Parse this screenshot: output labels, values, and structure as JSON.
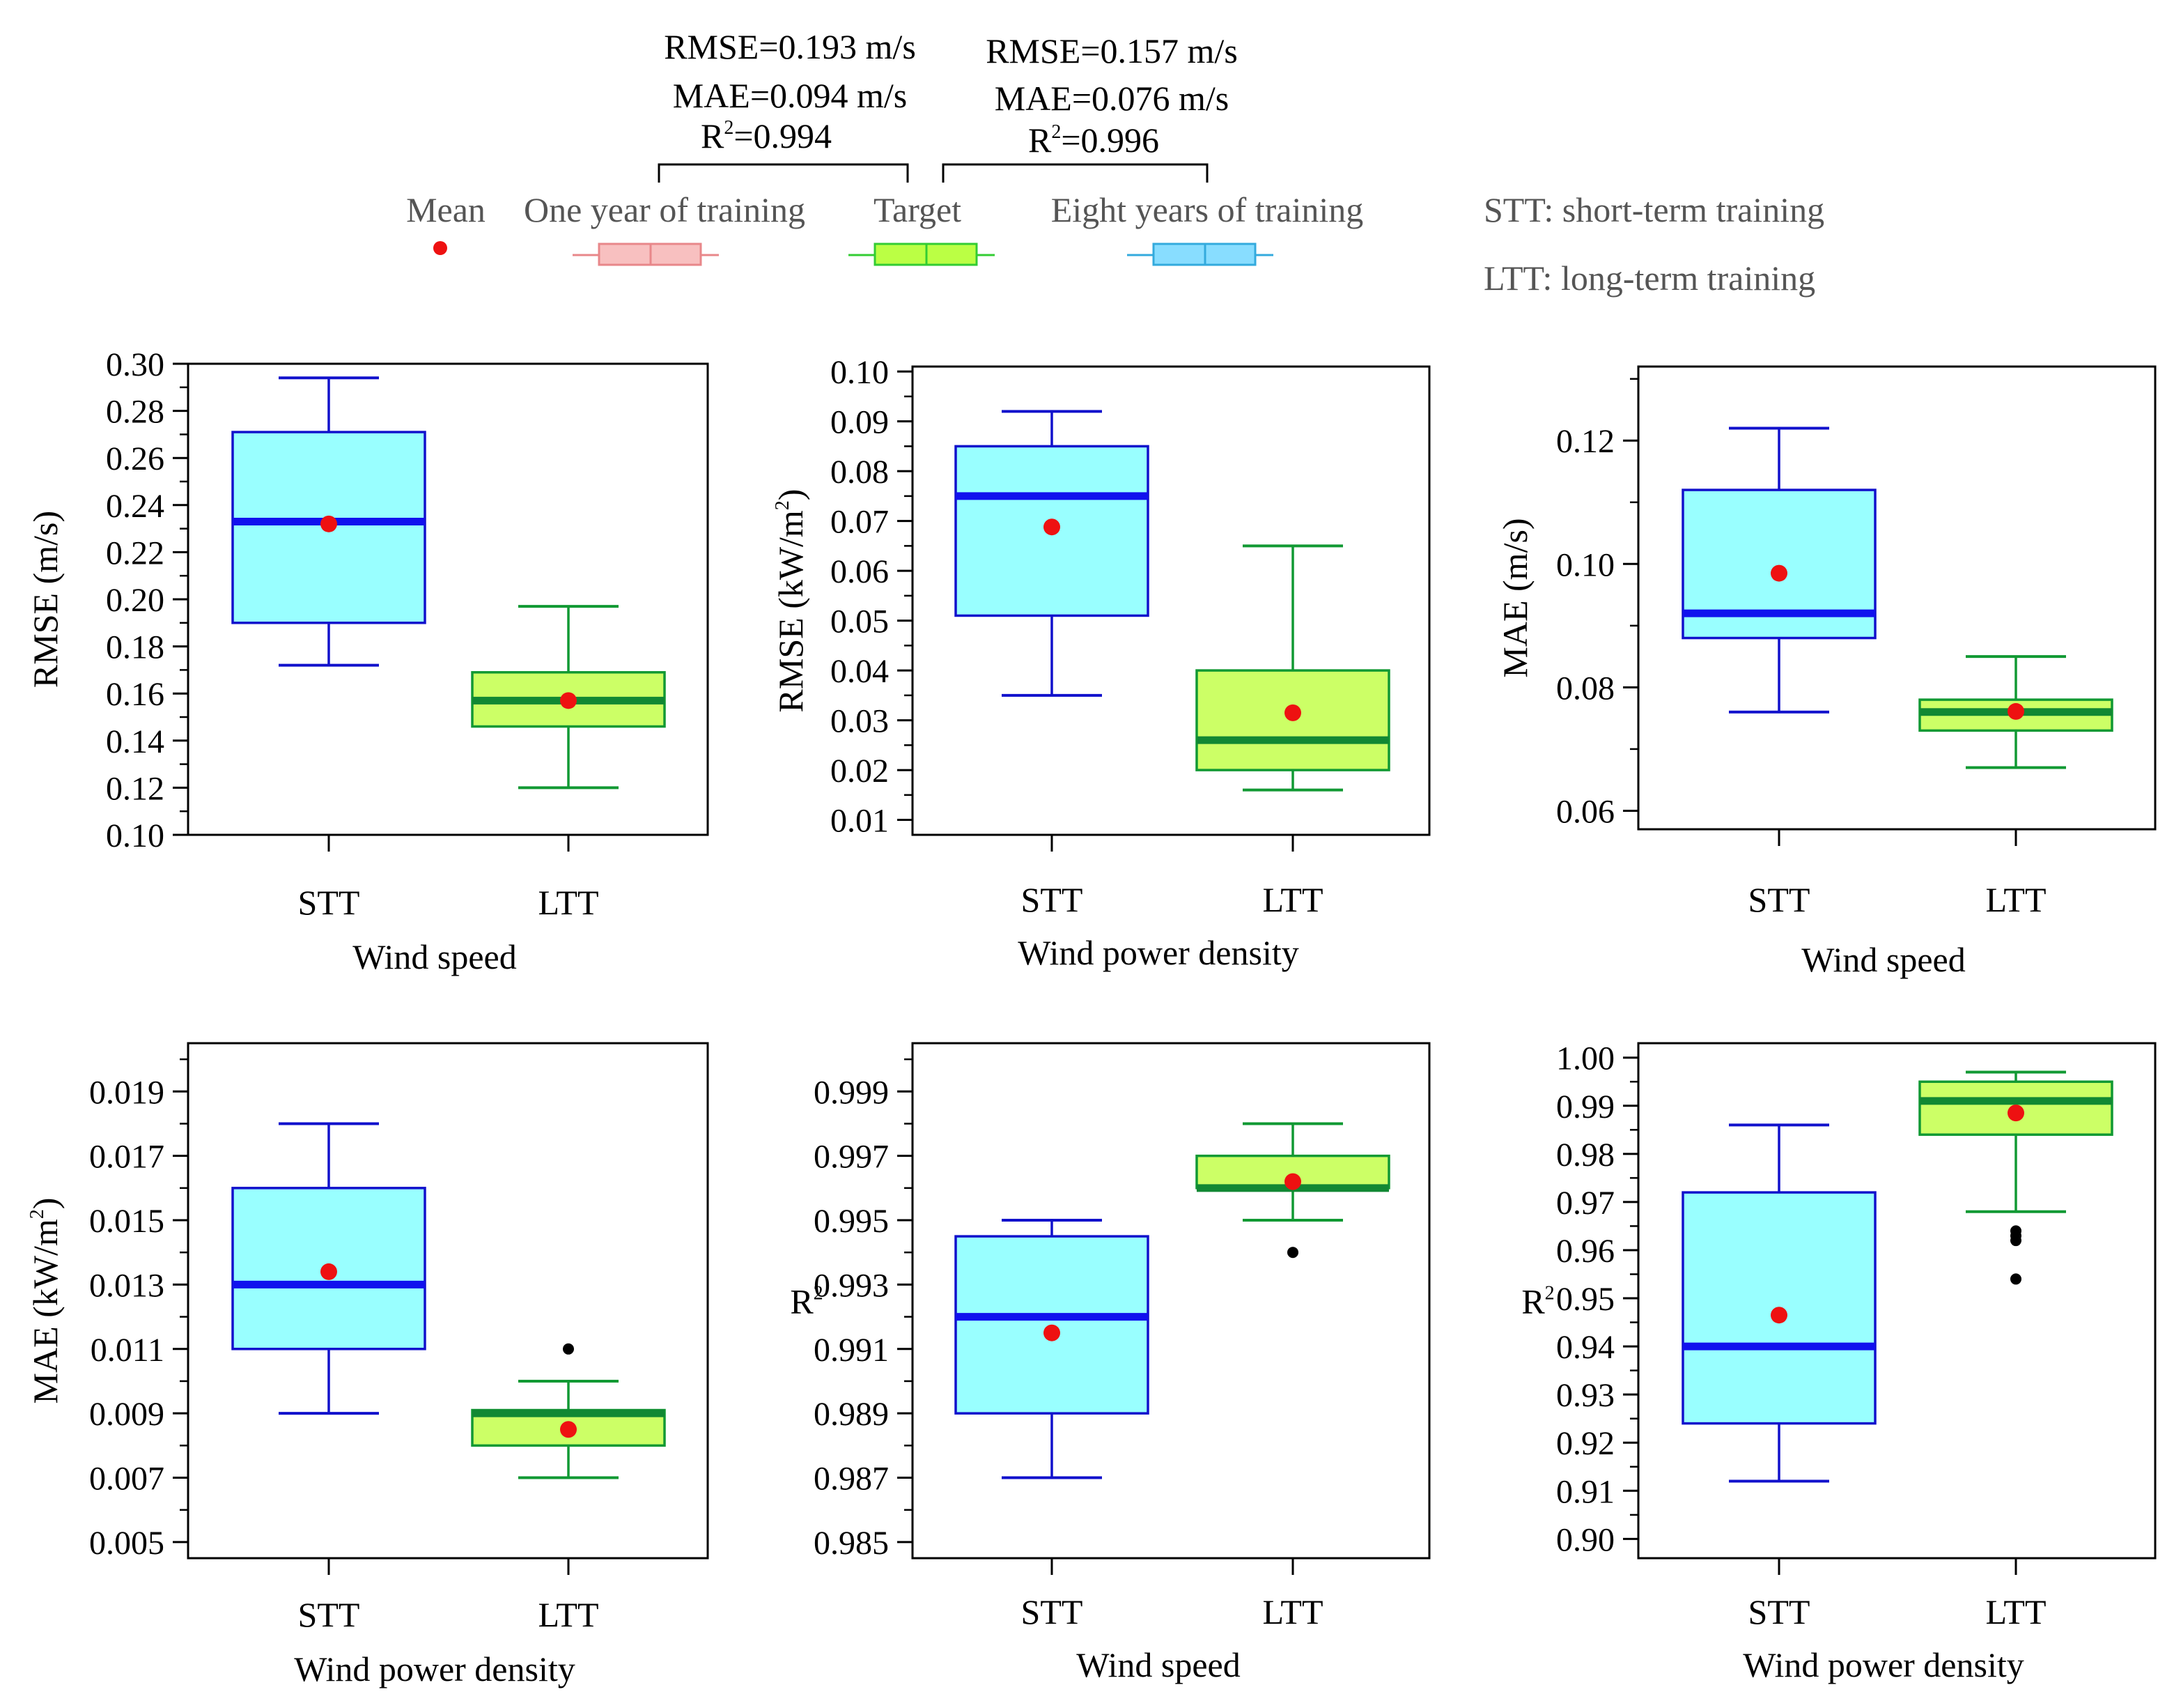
{
  "legend": {
    "mean_label": "Mean",
    "one_year_label": "One year of training",
    "target_label": "Target",
    "eight_years_label": "Eight years of training",
    "stt_note": "STT: short-term training",
    "ltt_note": "LTT: long-term training",
    "one_year_color": "#e8878a",
    "one_year_fill": "#f8c0c0",
    "target_color": "#33cc33",
    "target_fill": "#bbff44",
    "eight_years_color": "#33aadd",
    "eight_years_fill": "#88ddff",
    "mean_color": "#ee1111"
  },
  "comparisons": {
    "stt": {
      "rmse": "RMSE=0.193 m/s",
      "mae": "MAE=0.094 m/s",
      "r2_prefix": "R",
      "r2_sup": "2",
      "r2_value": "=0.994"
    },
    "ltt": {
      "rmse": "RMSE=0.157 m/s",
      "mae": "MAE=0.076 m/s",
      "r2_prefix": "R",
      "r2_sup": "2",
      "r2_value": "=0.996"
    }
  },
  "colors": {
    "stt_edge": "#1111cc",
    "stt_fill": "#99ffff",
    "stt_median": "#1111ee",
    "ltt_edge": "#119933",
    "ltt_fill": "#ccff66",
    "ltt_median": "#118833",
    "mean": "#ee1111",
    "outlier": "#000000"
  },
  "chart_data": [
    {
      "id": "p1",
      "type": "boxplot",
      "ylabel": {
        "main": "RMSE (m/s)"
      },
      "xlabel": "Wind speed",
      "categories": [
        "STT",
        "LTT"
      ],
      "ylim": [
        0.1,
        0.3
      ],
      "yticks": [
        0.1,
        0.12,
        0.14,
        0.16,
        0.18,
        0.2,
        0.22,
        0.24,
        0.26,
        0.28,
        0.3
      ],
      "ytick_labels": [
        "0.10",
        "0.12",
        "0.14",
        "0.16",
        "0.18",
        "0.20",
        "0.22",
        "0.24",
        "0.26",
        "0.28",
        "0.30"
      ],
      "minor_step": 0.01,
      "boxes": [
        {
          "category": "STT",
          "whisker_low": 0.172,
          "q1": 0.19,
          "median": 0.233,
          "q3": 0.271,
          "whisker_high": 0.294,
          "mean": 0.232,
          "outliers": []
        },
        {
          "category": "LTT",
          "whisker_low": 0.12,
          "q1": 0.146,
          "median": 0.157,
          "q3": 0.169,
          "whisker_high": 0.197,
          "mean": 0.157,
          "outliers": []
        }
      ]
    },
    {
      "id": "p2",
      "type": "boxplot",
      "ylabel": {
        "main": "RMSE (kW/m",
        "sup": "2",
        "end": ")"
      },
      "xlabel": "Wind power density",
      "categories": [
        "STT",
        "LTT"
      ],
      "ylim": [
        0.007,
        0.101
      ],
      "yticks": [
        0.01,
        0.02,
        0.03,
        0.04,
        0.05,
        0.06,
        0.07,
        0.08,
        0.09,
        0.1
      ],
      "ytick_labels": [
        "0.01",
        "0.02",
        "0.03",
        "0.04",
        "0.05",
        "0.06",
        "0.07",
        "0.08",
        "0.09",
        "0.10"
      ],
      "minor_step": 0.005,
      "boxes": [
        {
          "category": "STT",
          "whisker_low": 0.035,
          "q1": 0.051,
          "median": 0.075,
          "q3": 0.085,
          "whisker_high": 0.092,
          "mean": 0.0688,
          "outliers": []
        },
        {
          "category": "LTT",
          "whisker_low": 0.016,
          "q1": 0.02,
          "median": 0.026,
          "q3": 0.04,
          "whisker_high": 0.065,
          "mean": 0.0315,
          "outliers": []
        }
      ]
    },
    {
      "id": "p3",
      "type": "boxplot",
      "ylabel": {
        "main": "MAE (m/s)"
      },
      "xlabel": "Wind speed",
      "categories": [
        "STT",
        "LTT"
      ],
      "ylim": [
        0.057,
        0.132
      ],
      "yticks": [
        0.06,
        0.08,
        0.1,
        0.12
      ],
      "ytick_labels": [
        "0.06",
        "0.08",
        "0.10",
        "0.12"
      ],
      "minor_step": 0.01,
      "boxes": [
        {
          "category": "STT",
          "whisker_low": 0.076,
          "q1": 0.088,
          "median": 0.092,
          "q3": 0.112,
          "whisker_high": 0.122,
          "mean": 0.0985,
          "outliers": []
        },
        {
          "category": "LTT",
          "whisker_low": 0.067,
          "q1": 0.073,
          "median": 0.076,
          "q3": 0.078,
          "whisker_high": 0.085,
          "mean": 0.0761,
          "outliers": []
        }
      ]
    },
    {
      "id": "p4",
      "type": "boxplot",
      "ylabel": {
        "main": "MAE (kW/m",
        "sup": "2",
        "end": ")"
      },
      "xlabel": "Wind power density",
      "categories": [
        "STT",
        "LTT"
      ],
      "ylim": [
        0.0045,
        0.0205
      ],
      "yticks": [
        0.005,
        0.007,
        0.009,
        0.011,
        0.013,
        0.015,
        0.017,
        0.019
      ],
      "ytick_labels": [
        "0.005",
        "0.007",
        "0.009",
        "0.011",
        "0.013",
        "0.015",
        "0.017",
        "0.019"
      ],
      "minor_step": 0.001,
      "boxes": [
        {
          "category": "STT",
          "whisker_low": 0.009,
          "q1": 0.011,
          "median": 0.013,
          "q3": 0.016,
          "whisker_high": 0.018,
          "mean": 0.0134,
          "outliers": []
        },
        {
          "category": "LTT",
          "whisker_low": 0.007,
          "q1": 0.008,
          "median": 0.009,
          "q3": 0.0091,
          "whisker_high": 0.01,
          "mean": 0.0085,
          "outliers": [
            0.011
          ]
        }
      ]
    },
    {
      "id": "p5",
      "type": "boxplot",
      "ylabel": {
        "main": "R",
        "sup": "2",
        "end": ""
      },
      "xlabel": "Wind speed",
      "categories": [
        "STT",
        "LTT"
      ],
      "ylim": [
        0.9845,
        1.0005
      ],
      "yticks": [
        0.985,
        0.987,
        0.989,
        0.991,
        0.993,
        0.995,
        0.997,
        0.999
      ],
      "ytick_labels": [
        "0.985",
        "0.987",
        "0.989",
        "0.991",
        "0.993",
        "0.995",
        "0.997",
        "0.999"
      ],
      "minor_step": 0.001,
      "boxes": [
        {
          "category": "STT",
          "whisker_low": 0.987,
          "q1": 0.989,
          "median": 0.992,
          "q3": 0.9945,
          "whisker_high": 0.995,
          "mean": 0.9915,
          "outliers": []
        },
        {
          "category": "LTT",
          "whisker_low": 0.995,
          "q1": 0.996,
          "median": 0.996,
          "q3": 0.997,
          "whisker_high": 0.998,
          "mean": 0.9962,
          "outliers": [
            0.994
          ]
        }
      ]
    },
    {
      "id": "p6",
      "type": "boxplot",
      "ylabel": {
        "main": "R",
        "sup": "2",
        "end": ""
      },
      "xlabel": "Wind power density",
      "categories": [
        "STT",
        "LTT"
      ],
      "ylim": [
        0.896,
        1.003
      ],
      "yticks": [
        0.9,
        0.91,
        0.92,
        0.93,
        0.94,
        0.95,
        0.96,
        0.97,
        0.98,
        0.99,
        1.0
      ],
      "ytick_labels": [
        "0.90",
        "0.91",
        "0.92",
        "0.93",
        "0.94",
        "0.95",
        "0.96",
        "0.97",
        "0.98",
        "0.99",
        "1.00"
      ],
      "minor_step": 0.005,
      "boxes": [
        {
          "category": "STT",
          "whisker_low": 0.912,
          "q1": 0.924,
          "median": 0.94,
          "q3": 0.972,
          "whisker_high": 0.986,
          "mean": 0.9465,
          "outliers": []
        },
        {
          "category": "LTT",
          "whisker_low": 0.968,
          "q1": 0.984,
          "median": 0.991,
          "q3": 0.995,
          "whisker_high": 0.997,
          "mean": 0.9885,
          "outliers": [
            0.954,
            0.962,
            0.963,
            0.964
          ]
        }
      ]
    }
  ]
}
